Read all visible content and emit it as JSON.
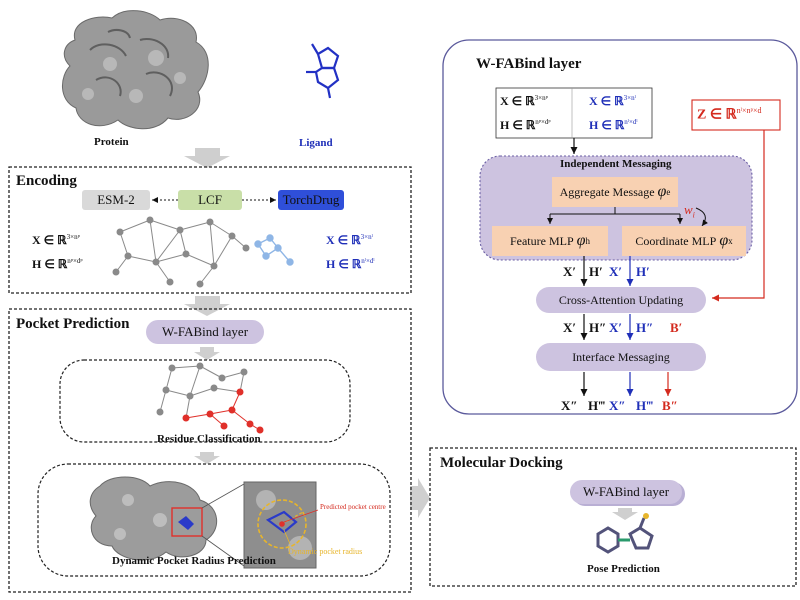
{
  "top": {
    "protein_label": "Protein",
    "ligand_label": "Ligand"
  },
  "encoding": {
    "title": "Encoding",
    "esm_label": "ESM-2",
    "lcf_label": "LCF",
    "torchdrug_label": "TorchDrug",
    "protein_x": "X ∈ ℝ",
    "protein_x_sup": "3×nᵖ",
    "protein_h": "H ∈ ℝ",
    "protein_h_sup": "nᵖ×dᵖ",
    "ligand_x": "X ∈ ℝ",
    "ligand_x_sup": "3×nˡ",
    "ligand_h": "H ∈ ℝ",
    "ligand_h_sup": "nˡ×dˡ"
  },
  "pocket": {
    "title": "Pocket Prediction",
    "wfabind_label": "W-FABind layer",
    "residue_label": "Residue Classification",
    "radius_label": "Dynamic Pocket Radius Prediction",
    "centre_label": "Predicted pocket centre",
    "dyn_radius_label": "Dynamic pocket radius"
  },
  "docking": {
    "title": "Molecular Docking",
    "wfabind_label": "W-FABind layer",
    "pose_label": "Pose Prediction"
  },
  "wfabind": {
    "title": "W-FABind layer",
    "in_x": "X ∈ ℝ",
    "in_x_sup": "3×nᵖ",
    "in_h": "H ∈ ℝ",
    "in_h_sup": "nᵖ×dᵖ",
    "in_lx": "X ∈ ℝ",
    "in_lx_sup": "3×nˡ",
    "in_lh": "H ∈ ℝ",
    "in_lh_sup": "nˡ×dˡ",
    "z_label": "Z ∈ ℝ",
    "z_sup": "nˡ×nᵖ×d",
    "independent_label": "Independent Messaging",
    "aggregate_label": "Aggregate Message",
    "aggregate_sym": "φ",
    "aggregate_sub": "e",
    "w_sym": "w",
    "w_sub": "i",
    "feature_label": "Feature MLP",
    "feature_sym": "φ",
    "feature_sub": "h",
    "coord_label": "Coordinate MLP",
    "coord_sym": "φ",
    "coord_sub": "x",
    "row1": [
      "X′",
      "H′",
      "X′",
      "H′"
    ],
    "cross_label": "Cross-Attention Updating",
    "row2": [
      "X′",
      "H″",
      "X′",
      "H″",
      "B′"
    ],
    "interface_label": "Interface Messaging",
    "row3": [
      "X″",
      "H‴",
      "X″",
      "H‴",
      "B″"
    ]
  },
  "colors": {
    "blue": "#1f2fb8",
    "red": "#d42a1e",
    "purple_pill": "#cdc3e0",
    "orange_box": "#f8d1b2",
    "lcf_green": "#c9dfa8",
    "torchdrug_blue": "#2f4fd9",
    "esm_gray": "#d9d9d9"
  }
}
